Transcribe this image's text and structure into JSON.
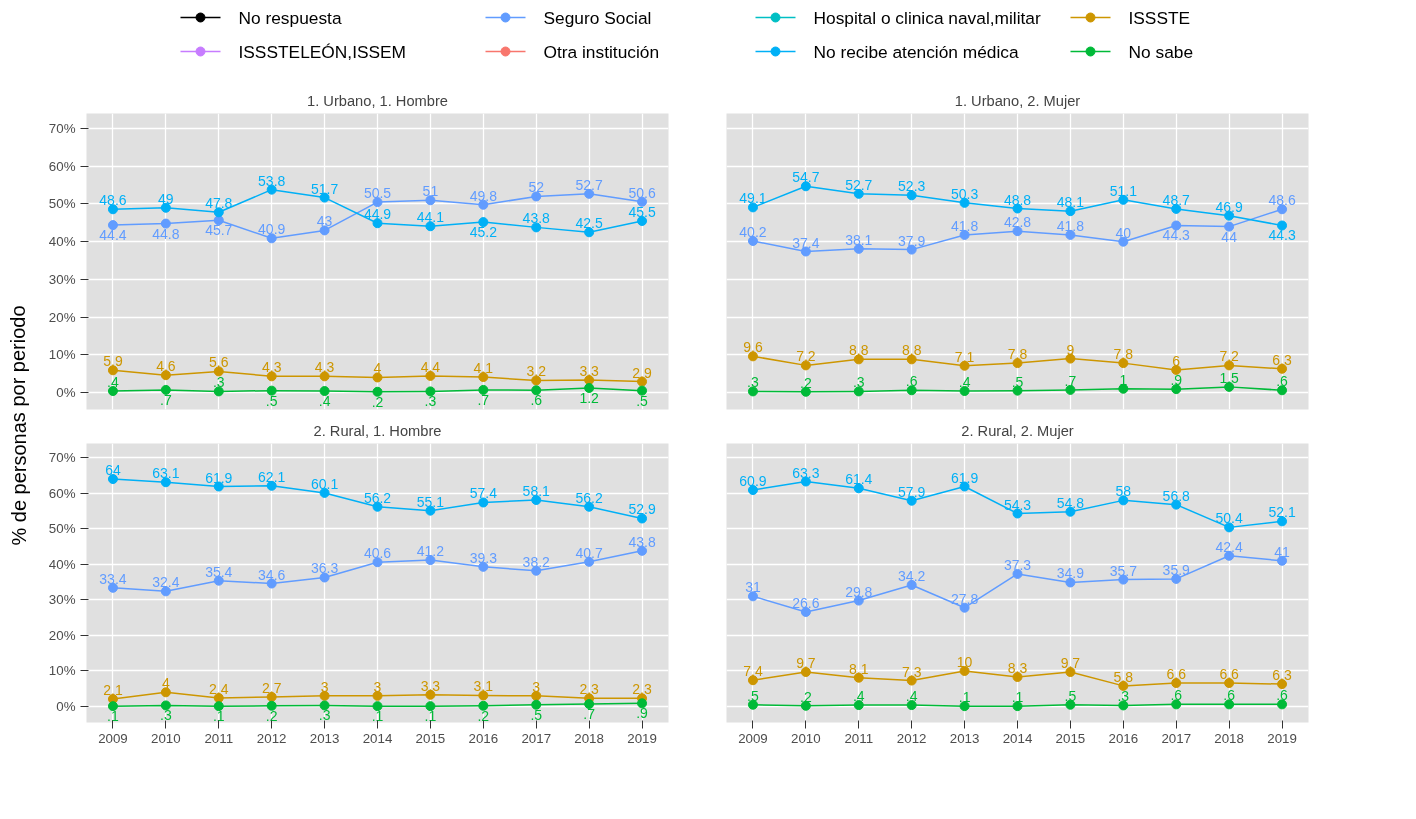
{
  "chart_data": [
    {
      "type": "line",
      "title": "1. Urbano, 1. Hombre",
      "ylabel": "% de personas por periodo",
      "legend": "top",
      "grid": true,
      "marker": "circle",
      "line_style": "solid",
      "tick_labels": "y",
      "x": [
        2009,
        2010,
        2011,
        2012,
        2013,
        2014,
        2015,
        2016,
        2017,
        2018,
        2019
      ],
      "xlim": [
        2008.5,
        2019.5
      ],
      "xticks": [
        2009,
        2010,
        2011,
        2012,
        2013,
        2014,
        2015,
        2016,
        2017,
        2018,
        2019
      ],
      "ylim": [
        -4.5,
        74
      ],
      "yticks": [
        {
          "value": 0,
          "label": "0%"
        },
        {
          "value": 10,
          "label": "10%"
        },
        {
          "value": 20,
          "label": "20%"
        },
        {
          "value": 30,
          "label": "30%"
        },
        {
          "value": 40,
          "label": "40%"
        },
        {
          "value": 50,
          "label": "50%"
        },
        {
          "value": 60,
          "label": "60%"
        },
        {
          "value": 70,
          "label": "70%"
        }
      ],
      "series": [
        {
          "name": "No respuesta",
          "color": "#000000",
          "values": [
            null,
            null,
            null,
            null,
            null,
            null,
            null,
            null,
            null,
            null,
            null
          ]
        },
        {
          "name": "ISSSTELEÓN,ISSEM",
          "color": "#c77cff",
          "values": [
            null,
            null,
            null,
            null,
            null,
            null,
            null,
            null,
            null,
            null,
            null
          ]
        },
        {
          "name": "Seguro Social",
          "color": "#619cff",
          "values": [
            44.4,
            44.8,
            45.7,
            40.9,
            43,
            50.5,
            51,
            49.8,
            52,
            52.7,
            50.6
          ],
          "value_labels": [
            "44.4",
            "44.8",
            "45.7",
            "40.9",
            "43",
            "50.5",
            "51",
            "49.8",
            "52",
            "52.7",
            "50.6"
          ]
        },
        {
          "name": "Otra institución",
          "color": "#f8766d",
          "values": [
            null,
            null,
            null,
            null,
            null,
            null,
            null,
            null,
            null,
            null,
            null
          ]
        },
        {
          "name": "Hospital o clinica naval,militar",
          "color": "#00bfc4",
          "values": [
            null,
            null,
            null,
            null,
            null,
            null,
            null,
            null,
            null,
            null,
            null
          ]
        },
        {
          "name": "No recibe atención médica",
          "color": "#00b0f6",
          "values": [
            48.6,
            49,
            47.8,
            53.8,
            51.7,
            44.9,
            44.1,
            45.2,
            43.8,
            42.5,
            45.5
          ],
          "value_labels": [
            "48.6",
            "49",
            "47.8",
            "53.8",
            "51.7",
            "44.9",
            "44.1",
            "45.2",
            "43.8",
            "42.5",
            "45.5"
          ]
        },
        {
          "name": "ISSSTE",
          "color": "#cd9600",
          "values": [
            5.9,
            4.6,
            5.6,
            4.3,
            4.3,
            4,
            4.4,
            4.1,
            3.2,
            3.3,
            2.9
          ],
          "value_labels": [
            "5.9",
            "4.6",
            "5.6",
            "4.3",
            "4.3",
            "4",
            "4.4",
            "4.1",
            "3.2",
            "3.3",
            "2.9"
          ]
        },
        {
          "name": "No sabe",
          "color": "#00ba38",
          "values": [
            0.4,
            0.7,
            0.3,
            0.5,
            0.4,
            0.2,
            0.3,
            0.7,
            0.6,
            1.2,
            0.5
          ],
          "value_labels": [
            ".4",
            ".7",
            ".3",
            ".5",
            ".4",
            ".2",
            ".3",
            ".7",
            ".6",
            "1.2",
            ".5"
          ]
        }
      ]
    },
    {
      "type": "line",
      "title": "1. Urbano, 2. Mujer",
      "grid": true,
      "marker": "circle",
      "line_style": "solid",
      "tick_labels": false,
      "x": [
        2009,
        2010,
        2011,
        2012,
        2013,
        2014,
        2015,
        2016,
        2017,
        2018,
        2019
      ],
      "xlim": [
        2008.5,
        2019.5
      ],
      "xticks": [
        2009,
        2010,
        2011,
        2012,
        2013,
        2014,
        2015,
        2016,
        2017,
        2018,
        2019
      ],
      "ylim": [
        -4.5,
        74
      ],
      "yticks": [
        {
          "value": 0,
          "label": null
        },
        {
          "value": 10,
          "label": null
        },
        {
          "value": 20,
          "label": null
        },
        {
          "value": 30,
          "label": null
        },
        {
          "value": 40,
          "label": null
        },
        {
          "value": 50,
          "label": null
        },
        {
          "value": 60,
          "label": null
        },
        {
          "value": 70,
          "label": null
        }
      ],
      "series": [
        {
          "color": "#619cff",
          "values": [
            40.2,
            37.4,
            38.1,
            37.9,
            41.8,
            42.8,
            41.8,
            40,
            44.3,
            44,
            48.6
          ],
          "value_labels": [
            "40.2",
            "37.4",
            "38.1",
            "37.9",
            "41.8",
            "42.8",
            "41.8",
            "40",
            "44.3",
            "44",
            "48.6"
          ]
        },
        {
          "color": "#00b0f6",
          "values": [
            49.1,
            54.7,
            52.7,
            52.3,
            50.3,
            48.8,
            48.1,
            51.1,
            48.7,
            46.9,
            44.3
          ],
          "value_labels": [
            "49.1",
            "54.7",
            "52.7",
            "52.3",
            "50.3",
            "48.8",
            "48.1",
            "51.1",
            "48.7",
            "46.9",
            "44.3"
          ]
        },
        {
          "color": "#cd9600",
          "values": [
            9.6,
            7.2,
            8.8,
            8.8,
            7.1,
            7.8,
            9,
            7.8,
            6,
            7.2,
            6.3
          ],
          "value_labels": [
            "9.6",
            "7.2",
            "8.8",
            "8.8",
            "7.1",
            "7.8",
            "9",
            "7.8",
            "6",
            "7.2",
            "6.3"
          ]
        },
        {
          "color": "#00ba38",
          "values": [
            0.3,
            0.2,
            0.3,
            0.6,
            0.4,
            0.5,
            0.7,
            1,
            0.9,
            1.5,
            0.6
          ],
          "value_labels": [
            ".3",
            ".2",
            ".3",
            ".6",
            ".4",
            ".5",
            ".7",
            "1",
            ".9",
            "1.5",
            ".6"
          ]
        }
      ]
    },
    {
      "type": "line",
      "title": "2. Rural, 1. Hombre",
      "grid": true,
      "marker": "circle",
      "line_style": "solid",
      "x": [
        2009,
        2010,
        2011,
        2012,
        2013,
        2014,
        2015,
        2016,
        2017,
        2018,
        2019
      ],
      "xlim": [
        2008.5,
        2019.5
      ],
      "xticks": [
        2009,
        2010,
        2011,
        2012,
        2013,
        2014,
        2015,
        2016,
        2017,
        2018,
        2019
      ],
      "ylim": [
        -4.5,
        74
      ],
      "yticks": [
        {
          "value": 0,
          "label": "0%"
        },
        {
          "value": 10,
          "label": "10%"
        },
        {
          "value": 20,
          "label": "20%"
        },
        {
          "value": 30,
          "label": "30%"
        },
        {
          "value": 40,
          "label": "40%"
        },
        {
          "value": 50,
          "label": "50%"
        },
        {
          "value": 60,
          "label": "60%"
        },
        {
          "value": 70,
          "label": "70%"
        }
      ],
      "series": [
        {
          "color": "#619cff",
          "values": [
            33.4,
            32.4,
            35.4,
            34.6,
            36.3,
            40.6,
            41.2,
            39.3,
            38.2,
            40.7,
            43.8
          ],
          "value_labels": [
            "33.4",
            "32.4",
            "35.4",
            "34.6",
            "36.3",
            "40.6",
            "41.2",
            "39.3",
            "38.2",
            "40.7",
            "43.8"
          ]
        },
        {
          "color": "#00b0f6",
          "values": [
            64,
            63.1,
            61.9,
            62.1,
            60.1,
            56.2,
            55.1,
            57.4,
            58.1,
            56.2,
            52.9
          ],
          "value_labels": [
            "64",
            "63.1",
            "61.9",
            "62.1",
            "60.1",
            "56.2",
            "55.1",
            "57.4",
            "58.1",
            "56.2",
            "52.9"
          ]
        },
        {
          "color": "#cd9600",
          "values": [
            2.1,
            4,
            2.4,
            2.7,
            3,
            3,
            3.3,
            3.1,
            3,
            2.3,
            2.3
          ],
          "value_labels": [
            "2.1",
            "4",
            "2.4",
            "2.7",
            "3",
            "3",
            "3.3",
            "3.1",
            "3",
            "2.3",
            "2.3"
          ]
        },
        {
          "color": "#00ba38",
          "values": [
            0.1,
            0.3,
            0.1,
            0.2,
            0.3,
            0.1,
            0.1,
            0.2,
            0.5,
            0.7,
            0.9
          ],
          "value_labels": [
            ".1",
            ".3",
            ".1",
            ".2",
            ".3",
            ".1",
            ".1",
            ".2",
            ".5",
            ".7",
            ".9"
          ]
        }
      ]
    },
    {
      "type": "line",
      "title": "2. Rural, 2. Mujer",
      "grid": true,
      "marker": "circle",
      "line_style": "solid",
      "tick_labels": "x",
      "x": [
        2009,
        2010,
        2011,
        2012,
        2013,
        2014,
        2015,
        2016,
        2017,
        2018,
        2019
      ],
      "xlim": [
        2008.5,
        2019.5
      ],
      "xticks": [
        2009,
        2010,
        2011,
        2012,
        2013,
        2014,
        2015,
        2016,
        2017,
        2018,
        2019
      ],
      "ylim": [
        -4.5,
        74
      ],
      "yticks": [
        {
          "value": 0,
          "label": null
        },
        {
          "value": 10,
          "label": null
        },
        {
          "value": 20,
          "label": null
        },
        {
          "value": 30,
          "label": null
        },
        {
          "value": 40,
          "label": null
        },
        {
          "value": 50,
          "label": null
        },
        {
          "value": 60,
          "label": null
        },
        {
          "value": 70,
          "label": null
        }
      ],
      "series": [
        {
          "color": "#619cff",
          "values": [
            31,
            26.6,
            29.8,
            34.2,
            27.8,
            37.3,
            34.9,
            35.7,
            35.9,
            42.4,
            41
          ],
          "value_labels": [
            "31",
            "26.6",
            "29.8",
            "34.2",
            "27.8",
            "37.3",
            "34.9",
            "35.7",
            "35.9",
            "42.4",
            "41"
          ]
        },
        {
          "color": "#00b0f6",
          "values": [
            60.9,
            63.3,
            61.4,
            57.9,
            61.9,
            54.3,
            54.8,
            58,
            56.8,
            50.4,
            52.1
          ],
          "value_labels": [
            "60.9",
            "63.3",
            "61.4",
            "57.9",
            "61.9",
            "54.3",
            "54.8",
            "58",
            "56.8",
            "50.4",
            "52.1"
          ]
        },
        {
          "color": "#cd9600",
          "values": [
            7.4,
            9.7,
            8.1,
            7.3,
            10,
            8.3,
            9.7,
            5.8,
            6.6,
            6.6,
            6.3
          ],
          "value_labels": [
            "7.4",
            "9.7",
            "8.1",
            "7.3",
            "10",
            "8.3",
            "9.7",
            "5.8",
            "6.6",
            "6.6",
            "6.3"
          ]
        },
        {
          "color": "#00ba38",
          "values": [
            0.5,
            0.2,
            0.4,
            0.4,
            0.1,
            0.1,
            0.5,
            0.3,
            0.6,
            0.6,
            0.6
          ],
          "value_labels": [
            ".5",
            ".2",
            ".4",
            ".4",
            ".1",
            ".1",
            ".5",
            ".3",
            ".6",
            ".6",
            ".6"
          ]
        }
      ]
    }
  ]
}
